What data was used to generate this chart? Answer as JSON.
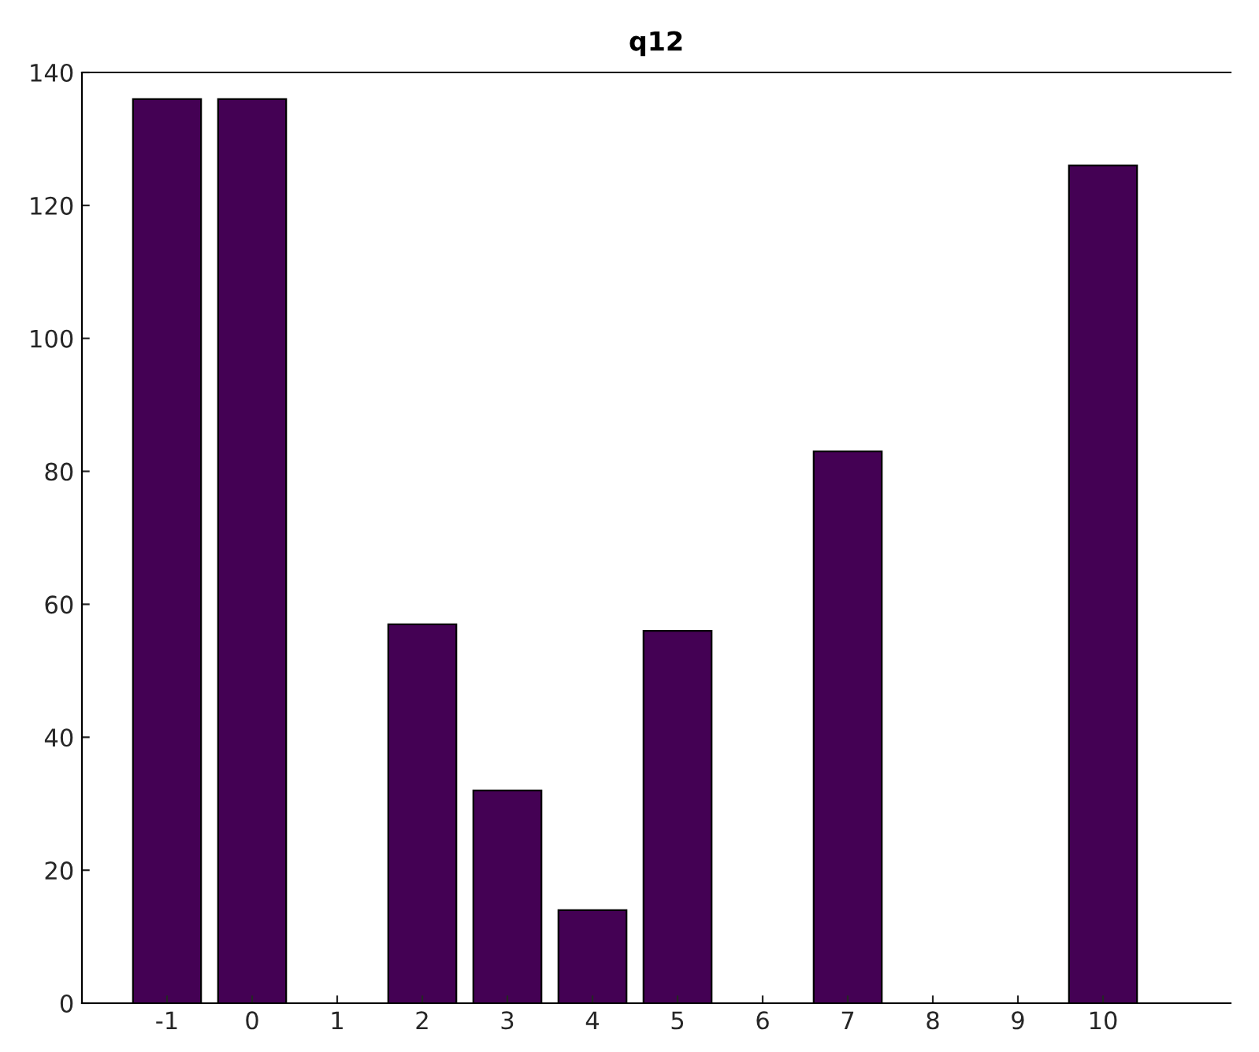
{
  "chart_data": {
    "type": "bar",
    "title": "q12",
    "x": [
      -1,
      0,
      1,
      2,
      3,
      4,
      5,
      6,
      7,
      8,
      9,
      10
    ],
    "values": [
      136,
      136,
      0,
      57,
      32,
      14,
      56,
      0,
      83,
      0,
      0,
      126
    ],
    "color": "#440154",
    "xlim": [
      -2,
      11.5
    ],
    "xticks": [
      -1,
      0,
      1,
      2,
      3,
      4,
      5,
      6,
      7,
      8,
      9,
      10
    ],
    "ylim": [
      0,
      140
    ],
    "yticks": [
      0,
      20,
      40,
      60,
      80,
      100,
      120,
      140
    ],
    "grid": false
  }
}
